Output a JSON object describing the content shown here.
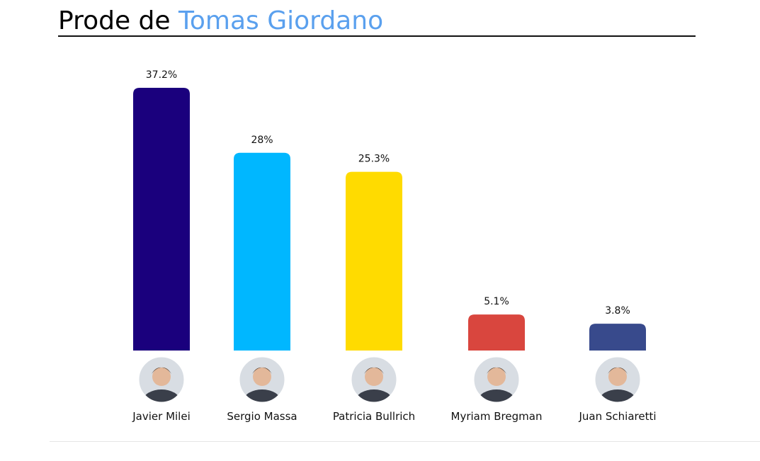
{
  "header": {
    "prefix": "Prode de",
    "name": "Tomas Giordano"
  },
  "chart_data": {
    "type": "bar",
    "categories": [
      "Javier Milei",
      "Sergio Massa",
      "Patricia Bullrich",
      "Myriam Bregman",
      "Juan Schiaretti"
    ],
    "values": [
      37.2,
      28,
      25.3,
      5.1,
      3.8
    ],
    "value_labels": [
      "37.2%",
      "28%",
      "25.3%",
      "5.1%",
      "3.8%"
    ],
    "colors": [
      "#1a007d",
      "#00b7ff",
      "#ffdb00",
      "#d9463e",
      "#384a8c"
    ],
    "title": "",
    "xlabel": "",
    "ylabel": "",
    "ylim": [
      0,
      37.2
    ],
    "grid": false,
    "legend": "none"
  },
  "avatars": [
    {
      "icon": "avatar-photo-icon"
    },
    {
      "icon": "avatar-photo-icon"
    },
    {
      "icon": "avatar-photo-icon"
    },
    {
      "icon": "avatar-photo-icon"
    },
    {
      "icon": "avatar-photo-icon"
    }
  ]
}
